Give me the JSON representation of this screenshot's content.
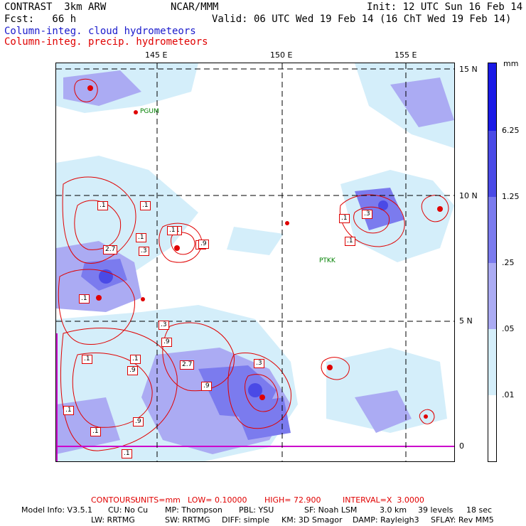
{
  "header": {
    "line1_left": "CONTRAST  3km ARW",
    "line1_mid": "NCAR/MMM",
    "line1_right": "Init: 12 UTC Sun 16 Feb 14",
    "line2_left": "Fcst:   66 h",
    "line2_right": "Valid: 06 UTC Wed 19 Feb 14 (16 ChT Wed 19 Feb 14)",
    "legend_cloud": "Column-integ. cloud hydrometeors",
    "legend_precip": "Column-integ. precip. hydrometeors"
  },
  "map": {
    "longitudes": [
      "145 E",
      "150 E",
      "155 E"
    ],
    "latitudes": [
      "15 N",
      "10 N",
      "5 N",
      "0"
    ],
    "stations": [
      "PGUM",
      "PTKK"
    ],
    "contour_labels": [
      ".1",
      ".1",
      ".1",
      ".1",
      "2.7",
      ".3",
      ".9",
      ".1",
      ".1",
      ".3",
      ".9",
      ".1",
      ".1",
      ".3",
      ".1",
      ".1",
      ".9",
      "2.7",
      ".9",
      ".9",
      ".3",
      ".1",
      ".9",
      ".1",
      ".1"
    ]
  },
  "colorbar": {
    "unit": "mm",
    "labels": [
      "6.25",
      "1.25",
      ".25",
      ".05",
      ".01"
    ],
    "colors": [
      "#1a1ae6",
      "#4a4ae6",
      "#7b7bee",
      "#ababf3",
      "#d4eefa",
      "#ffffff"
    ]
  },
  "footer": {
    "contours_prefix": "CONTOURS:",
    "contours_units": "UNITS=mm",
    "contours_low": "LOW= 0.10000",
    "contours_high": "HIGH= 72.900",
    "contours_interval": "INTERVAL=X  3.0000",
    "model_info": "Model Info: V3.5.1",
    "cu": "CU: No Cu",
    "mp": "MP: Thompson",
    "pbl": "PBL: YSU",
    "sf": "SF: Noah LSM",
    "res": "3.0 km",
    "levels": "39 levels",
    "dt": "18 sec",
    "lw": "LW: RRTMG",
    "sw": "SW: RRTMG",
    "diff": "DIFF: simple",
    "km": "KM: 3D Smagor",
    "damp": "DAMP: Rayleigh3",
    "sflay": "SFLAY: Rev MM5"
  }
}
